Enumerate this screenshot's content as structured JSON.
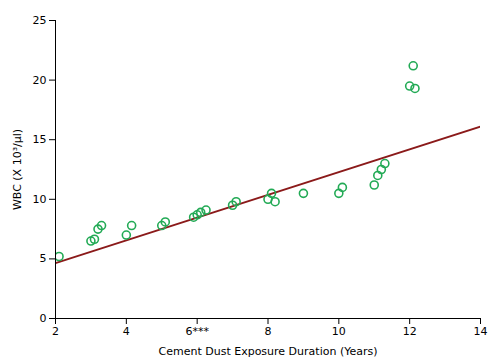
{
  "chart_data": {
    "type": "scatter",
    "xlabel": "Cement Dust Exposure Duration (Years)",
    "ylabel": "WBC (X 10³/µl)",
    "series": [
      {
        "type": "line",
        "color": "#8B1A1A",
        "x": [
          2,
          14
        ],
        "values": [
          4.65,
          16.1
        ]
      },
      {
        "type": "scatter",
        "color": "#22AA55",
        "x": [
          2.1,
          3.0,
          3.1,
          3.2,
          3.3,
          4.0,
          4.15,
          5.0,
          5.1,
          5.9,
          6.0,
          6.1,
          6.25,
          7.0,
          7.1,
          8.0,
          8.1,
          8.2,
          9.0,
          10.0,
          10.1,
          11.0,
          11.1,
          11.2,
          11.3,
          12.0,
          12.1,
          12.15
        ],
        "values": [
          5.2,
          6.5,
          6.65,
          7.5,
          7.8,
          7.0,
          7.8,
          7.8,
          8.1,
          8.5,
          8.7,
          8.9,
          9.1,
          9.5,
          9.8,
          10.0,
          10.5,
          9.8,
          10.5,
          10.5,
          11.0,
          11.2,
          12.0,
          12.5,
          13.0,
          19.5,
          21.2,
          19.3
        ]
      }
    ],
    "xlim": [
      2,
      14
    ],
    "ylim": [
      0,
      25
    ],
    "xticks": [
      2,
      4,
      {
        "value": 6,
        "label": "6***"
      },
      8,
      10,
      12,
      14
    ],
    "yticks": [
      0,
      5,
      10,
      15,
      20,
      25
    ]
  }
}
